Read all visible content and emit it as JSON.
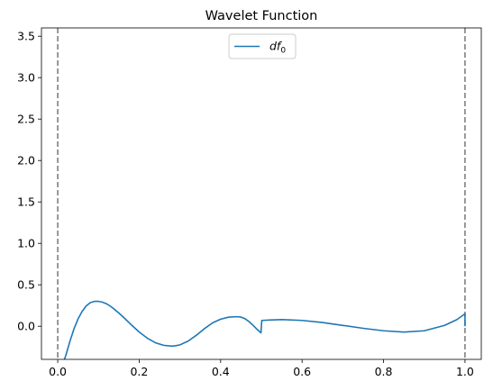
{
  "chart_data": {
    "type": "line",
    "title": "Wavelet Function",
    "xlabel": "",
    "ylabel": "",
    "xlim": [
      -0.04,
      1.04
    ],
    "ylim": [
      -0.4,
      3.6
    ],
    "xticks": [
      0.0,
      0.2,
      0.4,
      0.6,
      0.8,
      1.0
    ],
    "xtick_labels": [
      "0.0",
      "0.2",
      "0.4",
      "0.6",
      "0.8",
      "1.0"
    ],
    "yticks": [
      0.0,
      0.5,
      1.0,
      1.5,
      2.0,
      2.5,
      3.0,
      3.5
    ],
    "ytick_labels": [
      "0.0",
      "0.5",
      "1.0",
      "1.5",
      "2.0",
      "2.5",
      "3.0",
      "3.5"
    ],
    "grid": false,
    "legend_position": "top-center",
    "vertical_lines": [
      {
        "x": 0.0,
        "style": "dashed",
        "color": "#808080"
      },
      {
        "x": 1.0,
        "style": "dashed",
        "color": "#808080"
      }
    ],
    "series": [
      {
        "name_base": "df",
        "name_sub": "0",
        "color": "#1f77b4",
        "x": [
          0.015,
          0.02,
          0.03,
          0.04,
          0.05,
          0.06,
          0.07,
          0.08,
          0.09,
          0.1,
          0.11,
          0.12,
          0.13,
          0.14,
          0.15,
          0.16,
          0.18,
          0.2,
          0.22,
          0.24,
          0.26,
          0.28,
          0.29,
          0.3,
          0.32,
          0.34,
          0.36,
          0.38,
          0.4,
          0.42,
          0.44,
          0.45,
          0.46,
          0.47,
          0.48,
          0.49,
          0.499,
          0.501,
          0.52,
          0.55,
          0.6,
          0.65,
          0.7,
          0.75,
          0.8,
          0.85,
          0.9,
          0.95,
          0.98,
          1.0,
          1.0
        ],
        "y": [
          -0.42,
          -0.35,
          -0.18,
          -0.03,
          0.09,
          0.18,
          0.245,
          0.285,
          0.3,
          0.3,
          0.29,
          0.27,
          0.24,
          0.2,
          0.16,
          0.115,
          0.02,
          -0.07,
          -0.145,
          -0.2,
          -0.23,
          -0.24,
          -0.235,
          -0.225,
          -0.18,
          -0.11,
          -0.03,
          0.04,
          0.085,
          0.11,
          0.115,
          0.11,
          0.09,
          0.055,
          0.01,
          -0.04,
          -0.08,
          0.07,
          0.075,
          0.08,
          0.07,
          0.045,
          0.01,
          -0.025,
          -0.055,
          -0.07,
          -0.055,
          0.01,
          0.08,
          0.15,
          0.0
        ]
      }
    ]
  }
}
